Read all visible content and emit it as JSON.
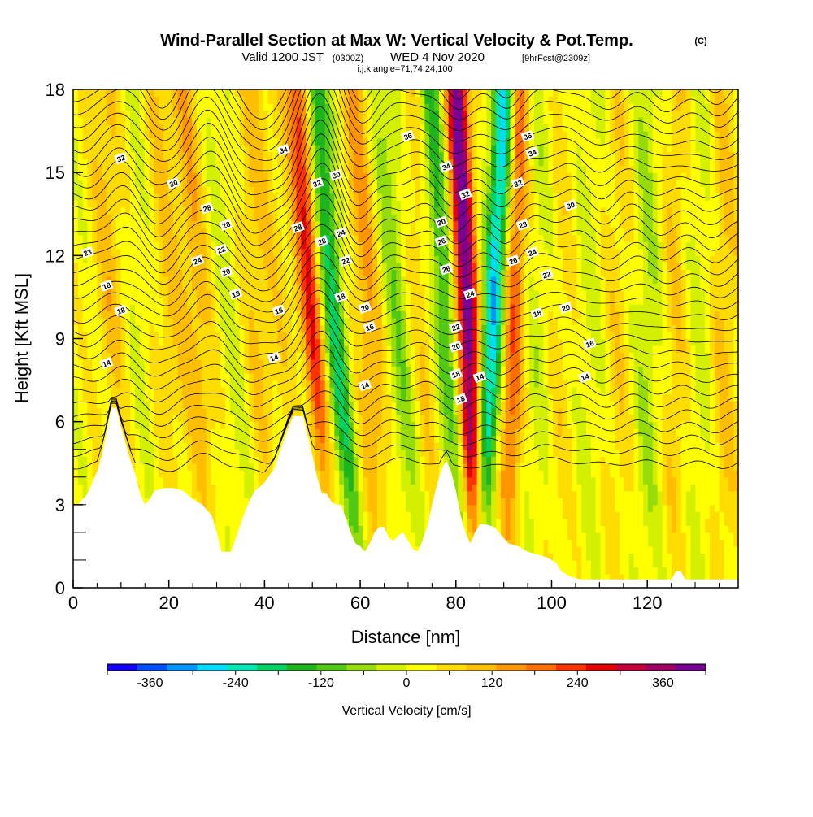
{
  "header": {
    "title_main": "Wind-Parallel Section at Max W: Vertical Velocity & Pot.Temp.",
    "title_copyright": "(C)",
    "valid_prefix": "Valid 1200 JST",
    "valid_utc": "(0300Z)",
    "valid_date": "WED 4 Nov 2020",
    "valid_fcst": "[9hrFcst@2309z]",
    "indices": "i,j,k,angle=71,74,24,100"
  },
  "chart_data": {
    "type": "heatmap",
    "xlabel": "Distance [nm]",
    "ylabel": "Height [Kft MSL]",
    "xlim": [
      0,
      139
    ],
    "ylim": [
      0,
      18
    ],
    "x_ticks": [
      "0",
      "20",
      "40",
      "60",
      "80",
      "100",
      "120"
    ],
    "x_tick_values": [
      0,
      20,
      40,
      60,
      80,
      100,
      120
    ],
    "y_ticks": [
      "0",
      "3",
      "6",
      "9",
      "12",
      "15",
      "18"
    ],
    "y_tick_values": [
      0,
      3,
      6,
      9,
      12,
      15,
      18
    ],
    "grid": false,
    "colorbar": {
      "title": "Vertical Velocity [cm/s]",
      "tick_labels": [
        "-360",
        "-240",
        "-120",
        "0",
        "120",
        "240",
        "360"
      ],
      "tick_values": [
        -360,
        -240,
        -120,
        0,
        120,
        240,
        360
      ],
      "range": [
        -420,
        420
      ],
      "colors": [
        "#1400ff",
        "#0050ff",
        "#0096ff",
        "#00dcff",
        "#00e6b4",
        "#00d264",
        "#1eb41e",
        "#50c814",
        "#96dc0a",
        "#d2f000",
        "#ffff00",
        "#ffdc00",
        "#ffbe00",
        "#ff9600",
        "#ff6e00",
        "#ff3200",
        "#e60000",
        "#c8003c",
        "#a00064",
        "#780096"
      ],
      "tick_mark_values": [
        -420,
        -360,
        -300,
        -240,
        -180,
        -120,
        -60,
        0,
        60,
        120,
        180,
        240,
        300,
        360,
        420
      ]
    },
    "terrain": [
      [
        0,
        3
      ],
      [
        1,
        3
      ],
      [
        3,
        3.4
      ],
      [
        4,
        3.8
      ],
      [
        5,
        4.2
      ],
      [
        6,
        4.8
      ],
      [
        7,
        5.6
      ],
      [
        8,
        6.5
      ],
      [
        9,
        6.5
      ],
      [
        10,
        5.8
      ],
      [
        11,
        5.2
      ],
      [
        12,
        4.6
      ],
      [
        13,
        4.1
      ],
      [
        14,
        3.4
      ],
      [
        15,
        3
      ],
      [
        16,
        3.2
      ],
      [
        17,
        3.5
      ],
      [
        19,
        3.6
      ],
      [
        21,
        3.6
      ],
      [
        23,
        3.5
      ],
      [
        25,
        3.2
      ],
      [
        27,
        3
      ],
      [
        28,
        2.8
      ],
      [
        29,
        2.6
      ],
      [
        30,
        2
      ],
      [
        31,
        1.3
      ],
      [
        33,
        1.3
      ],
      [
        34,
        1.8
      ],
      [
        35,
        2.3
      ],
      [
        36,
        2.8
      ],
      [
        37,
        3.2
      ],
      [
        38,
        3.5
      ],
      [
        40,
        3.8
      ],
      [
        42,
        4.3
      ],
      [
        43,
        4.8
      ],
      [
        44,
        5.3
      ],
      [
        45,
        5.8
      ],
      [
        46,
        6.2
      ],
      [
        48,
        6.2
      ],
      [
        49,
        5.5
      ],
      [
        50,
        4.8
      ],
      [
        51,
        4
      ],
      [
        52,
        3.4
      ],
      [
        53,
        3.4
      ],
      [
        54,
        3.1
      ],
      [
        55,
        3
      ],
      [
        56,
        3
      ],
      [
        57,
        2.5
      ],
      [
        58,
        2
      ],
      [
        59,
        1.6
      ],
      [
        60,
        1.5
      ],
      [
        61,
        1.3
      ],
      [
        62,
        1.6
      ],
      [
        63,
        2
      ],
      [
        64,
        2.2
      ],
      [
        65,
        2.2
      ],
      [
        66,
        1.8
      ],
      [
        67,
        1.7
      ],
      [
        68,
        1.9
      ],
      [
        69,
        2
      ],
      [
        70,
        1.7
      ],
      [
        71,
        1.4
      ],
      [
        72,
        1.3
      ],
      [
        73,
        1.7
      ],
      [
        74,
        2.2
      ],
      [
        75,
        3
      ],
      [
        76,
        3.7
      ],
      [
        77,
        4.3
      ],
      [
        78,
        4.6
      ],
      [
        79,
        4.2
      ],
      [
        80,
        3.5
      ],
      [
        81,
        2.6
      ],
      [
        82,
        2
      ],
      [
        83,
        1.6
      ],
      [
        84,
        2
      ],
      [
        85,
        2.3
      ],
      [
        86,
        2.3
      ],
      [
        88,
        2.2
      ],
      [
        89,
        2
      ],
      [
        90,
        1.8
      ],
      [
        91,
        1.6
      ],
      [
        93,
        1.5
      ],
      [
        95,
        1.3
      ],
      [
        97,
        1.2
      ],
      [
        99,
        1.1
      ],
      [
        100,
        1
      ],
      [
        101,
        0.9
      ],
      [
        102,
        0.6
      ],
      [
        104,
        0.4
      ],
      [
        106,
        0.3
      ],
      [
        110,
        0.3
      ],
      [
        115,
        0.3
      ],
      [
        120,
        0.3
      ],
      [
        125,
        0.3
      ],
      [
        126,
        0.6
      ],
      [
        127,
        0.6
      ],
      [
        128,
        0.3
      ],
      [
        130,
        0.3
      ],
      [
        135,
        0.3
      ],
      [
        139,
        0.3
      ]
    ],
    "vertical_velocity_bands": [
      {
        "x": 8,
        "w": 80,
        "slant": -0.15
      },
      {
        "x": 14,
        "w": -20,
        "slant": -0.2
      },
      {
        "x": 20,
        "w": 60,
        "slant": -0.25
      },
      {
        "x": 26,
        "w": 90,
        "slant": -0.3
      },
      {
        "x": 33,
        "w": -30,
        "slant": -0.35
      },
      {
        "x": 39,
        "w": 70,
        "slant": -0.3
      },
      {
        "x": 45,
        "w": 40,
        "slant": -0.4
      },
      {
        "x": 50,
        "w": 220,
        "slant": -0.35
      },
      {
        "x": 55,
        "w": -200,
        "slant": -0.45
      },
      {
        "x": 62,
        "w": 110,
        "slant": -0.35
      },
      {
        "x": 68,
        "w": -90,
        "slant": -0.35
      },
      {
        "x": 73,
        "w": 60,
        "slant": -0.3
      },
      {
        "x": 78,
        "w": -170,
        "slant": -0.4
      },
      {
        "x": 82.5,
        "w": 400,
        "slant": -0.25
      },
      {
        "x": 87.5,
        "w": -300,
        "slant": 0.3
      },
      {
        "x": 92,
        "w": 180,
        "slant": 0.15
      },
      {
        "x": 97,
        "w": -40,
        "slant": 0.1
      },
      {
        "x": 102,
        "w": 40,
        "slant": 0.05
      },
      {
        "x": 108,
        "w": -30,
        "slant": 0
      },
      {
        "x": 114,
        "w": 50,
        "slant": 0
      },
      {
        "x": 120,
        "w": -60,
        "slant": 0
      },
      {
        "x": 126,
        "w": 60,
        "slant": 0
      },
      {
        "x": 131,
        "w": -40,
        "slant": 0
      },
      {
        "x": 136,
        "w": 70,
        "slant": 0
      }
    ],
    "theta_contour_labels": [
      {
        "text": "36",
        "x": 70,
        "y": 16.3
      },
      {
        "text": "36",
        "x": 95,
        "y": 16.3
      },
      {
        "text": "34",
        "x": 44,
        "y": 15.8
      },
      {
        "text": "34",
        "x": 96,
        "y": 15.7
      },
      {
        "text": "34",
        "x": 78,
        "y": 15.2
      },
      {
        "text": "32",
        "x": 10,
        "y": 15.5
      },
      {
        "text": "32",
        "x": 51,
        "y": 14.6
      },
      {
        "text": "32",
        "x": 82,
        "y": 14.2
      },
      {
        "text": "32",
        "x": 93,
        "y": 14.6
      },
      {
        "text": "30",
        "x": 21,
        "y": 14.6
      },
      {
        "text": "30",
        "x": 55,
        "y": 14.9
      },
      {
        "text": "30",
        "x": 104,
        "y": 13.8
      },
      {
        "text": "30",
        "x": 77,
        "y": 13.2
      },
      {
        "text": "28",
        "x": 28,
        "y": 13.7
      },
      {
        "text": "28",
        "x": 47,
        "y": 13
      },
      {
        "text": "28",
        "x": 94,
        "y": 13.1
      },
      {
        "text": "28",
        "x": 52,
        "y": 12.5
      },
      {
        "text": "28",
        "x": 32,
        "y": 13.1
      },
      {
        "text": "26",
        "x": 77,
        "y": 12.5
      },
      {
        "text": "26",
        "x": 78,
        "y": 11.5
      },
      {
        "text": "26",
        "x": 92,
        "y": 11.8
      },
      {
        "text": "24",
        "x": 56,
        "y": 12.8
      },
      {
        "text": "24",
        "x": 26,
        "y": 11.8
      },
      {
        "text": "24",
        "x": 96,
        "y": 12.1
      },
      {
        "text": "24",
        "x": 83,
        "y": 10.6
      },
      {
        "text": "22",
        "x": 31,
        "y": 12.2
      },
      {
        "text": "22",
        "x": 57,
        "y": 11.8
      },
      {
        "text": "22",
        "x": 99,
        "y": 11.3
      },
      {
        "text": "22",
        "x": 80,
        "y": 9.4
      },
      {
        "text": "23",
        "x": 3,
        "y": 12.1
      },
      {
        "text": "20",
        "x": 32,
        "y": 11.4
      },
      {
        "text": "20",
        "x": 61,
        "y": 10.1
      },
      {
        "text": "20",
        "x": 103,
        "y": 10.1
      },
      {
        "text": "20",
        "x": 80,
        "y": 8.7
      },
      {
        "text": "18",
        "x": 7,
        "y": 10.9
      },
      {
        "text": "18",
        "x": 34,
        "y": 10.6
      },
      {
        "text": "18",
        "x": 56,
        "y": 10.5
      },
      {
        "text": "18",
        "x": 10,
        "y": 10
      },
      {
        "text": "18",
        "x": 97,
        "y": 9.9
      },
      {
        "text": "18",
        "x": 80,
        "y": 7.7
      },
      {
        "text": "18",
        "x": 81,
        "y": 6.8
      },
      {
        "text": "16",
        "x": 43,
        "y": 10
      },
      {
        "text": "16",
        "x": 62,
        "y": 9.4
      },
      {
        "text": "16",
        "x": 108,
        "y": 8.8
      },
      {
        "text": "14",
        "x": 7,
        "y": 8.1
      },
      {
        "text": "14",
        "x": 42,
        "y": 8.3
      },
      {
        "text": "14",
        "x": 61,
        "y": 7.3
      },
      {
        "text": "14",
        "x": 85,
        "y": 7.6
      },
      {
        "text": "14",
        "x": 107,
        "y": 7.6
      }
    ]
  }
}
